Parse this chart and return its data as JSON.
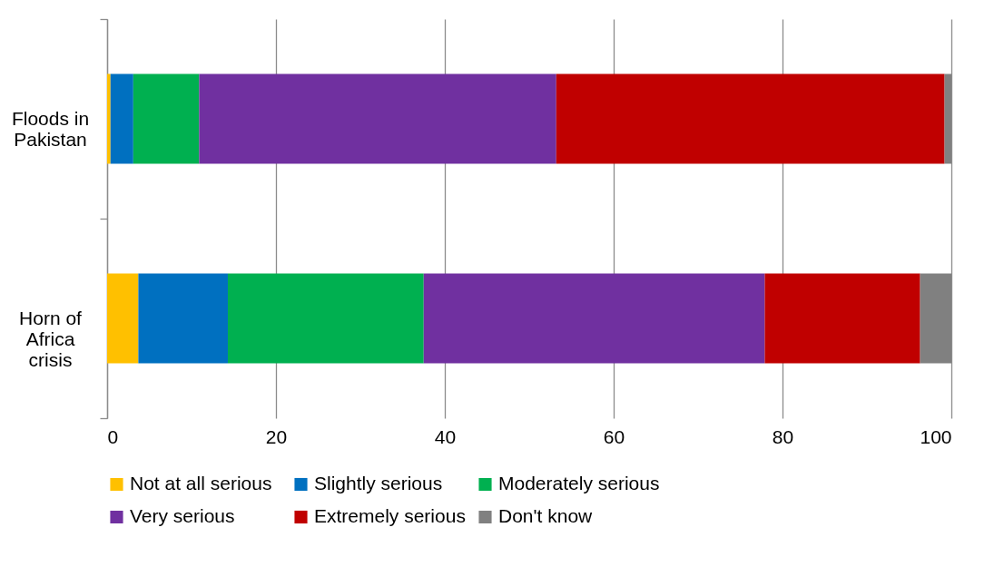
{
  "chart_data": {
    "type": "bar",
    "orientation": "horizontal",
    "stacked": true,
    "categories": [
      "Floods in Pakistan",
      "Horn of Africa crisis"
    ],
    "series": [
      {
        "name": "Not at all serious",
        "color": "#ffc000",
        "values": [
          0.4,
          3.7
        ]
      },
      {
        "name": "Slightly serious",
        "color": "#0070c0",
        "values": [
          2.7,
          10.6
        ]
      },
      {
        "name": "Moderately serious",
        "color": "#00b050",
        "values": [
          7.8,
          23.2
        ]
      },
      {
        "name": "Very serious",
        "color": "#7030a0",
        "values": [
          42.3,
          40.4
        ]
      },
      {
        "name": "Extremely serious",
        "color": "#c00000",
        "values": [
          46.0,
          18.4
        ]
      },
      {
        "name": "Don't know",
        "color": "#808080",
        "values": [
          0.8,
          3.7
        ]
      }
    ],
    "xlim": [
      0,
      100
    ],
    "xticks": [
      0,
      20,
      40,
      60,
      80,
      100
    ],
    "grid": "x",
    "legend": "bottom"
  }
}
